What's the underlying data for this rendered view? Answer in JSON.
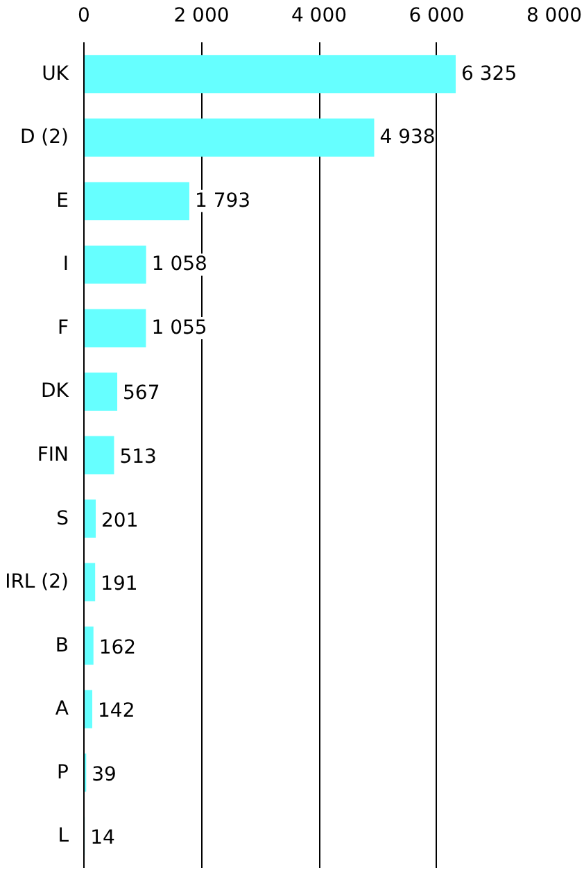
{
  "chart_data": {
    "type": "bar",
    "orientation": "horizontal",
    "categories": [
      "UK",
      "D (2)",
      "E",
      "I",
      "F",
      "DK",
      "FIN",
      "S",
      "IRL (2)",
      "B",
      "A",
      "P",
      "L"
    ],
    "values": [
      6325,
      4938,
      1793,
      1058,
      1055,
      567,
      513,
      201,
      191,
      162,
      142,
      39,
      14
    ],
    "value_labels": [
      "6 325",
      "4 938",
      "1 793",
      "1 058",
      "1 055",
      "567",
      "513",
      "201",
      "191",
      "162",
      "142",
      "39",
      "14"
    ],
    "color": "#66ffff",
    "xlim": [
      0,
      8000
    ],
    "xticks": [
      0,
      {
        "value": 2000,
        "label": "2 000"
      },
      {
        "value": 4000,
        "label": "4 000"
      },
      {
        "value": 6000,
        "label": "6 000"
      },
      {
        "value": 8000,
        "label": "8 000"
      }
    ],
    "grid": "x"
  }
}
